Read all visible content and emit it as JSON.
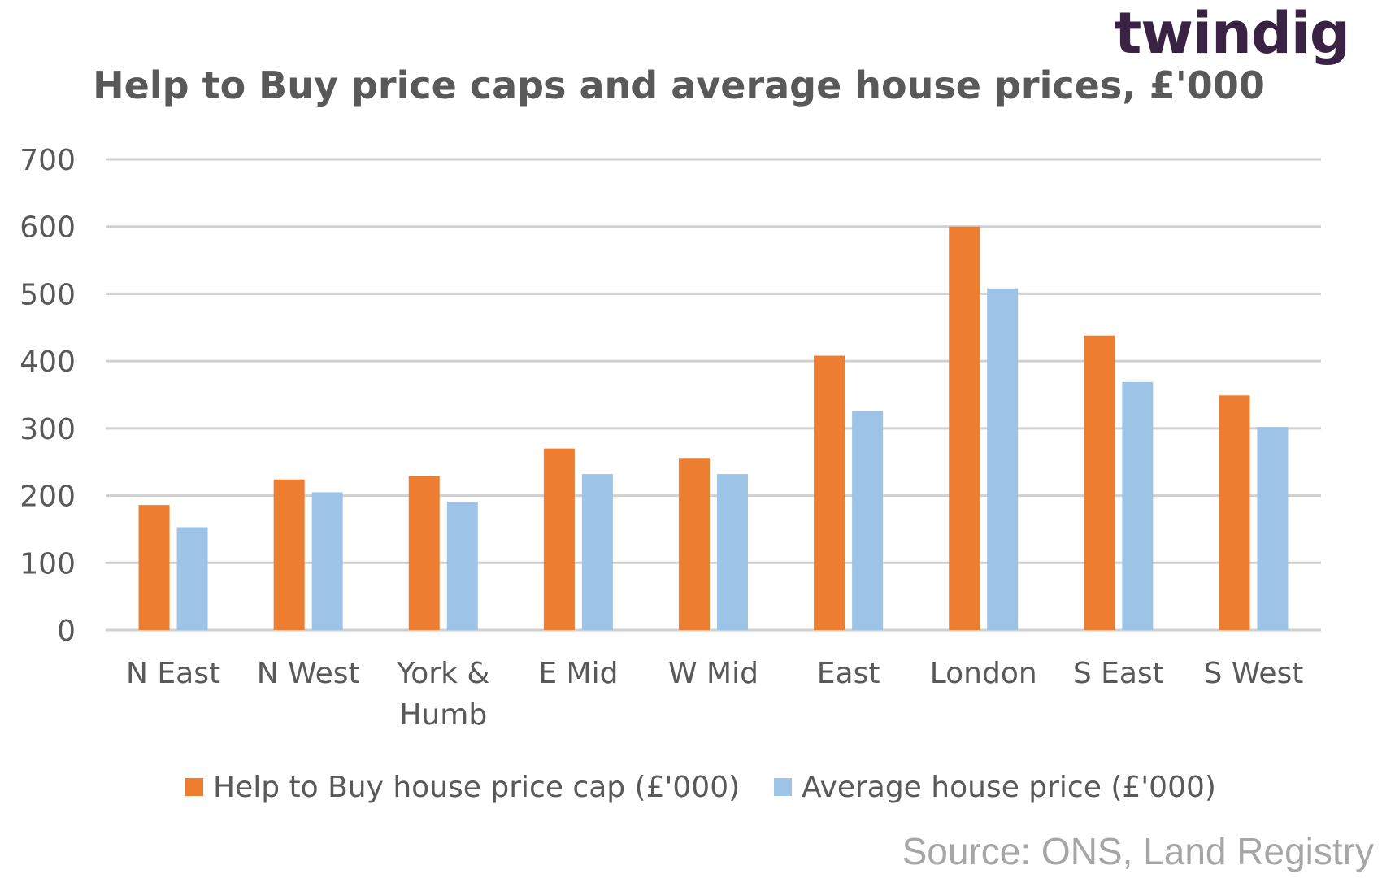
{
  "brand": {
    "logo_text": "twindig"
  },
  "source_note": "Source: ONS, Land Registry",
  "chart_data": {
    "type": "bar",
    "title": "Help to Buy price caps and average house prices, £'000",
    "xlabel": "",
    "ylabel": "",
    "categories": [
      "N East",
      "N West",
      "York & Humb",
      "E Mid",
      "W Mid",
      "East",
      "London",
      "S East",
      "S West"
    ],
    "category_lines": [
      [
        "N East"
      ],
      [
        "N West"
      ],
      [
        "York &",
        "Humb"
      ],
      [
        "E Mid"
      ],
      [
        "W Mid"
      ],
      [
        "East"
      ],
      [
        "London"
      ],
      [
        "S East"
      ],
      [
        "S West"
      ]
    ],
    "series": [
      {
        "name": "Help to Buy house price cap (£'000)",
        "color": "#ed7d31",
        "values": [
          186,
          224,
          229,
          270,
          256,
          408,
          600,
          438,
          349
        ]
      },
      {
        "name": "Average house price (£'000)",
        "color": "#9dc3e6",
        "values": [
          153,
          205,
          191,
          232,
          232,
          326,
          508,
          369,
          302
        ]
      }
    ],
    "ylim": [
      0,
      700
    ],
    "yticks": [
      "0",
      "100",
      "200",
      "300",
      "400",
      "500",
      "600",
      "700"
    ],
    "grid": true,
    "legend_position": "bottom"
  }
}
